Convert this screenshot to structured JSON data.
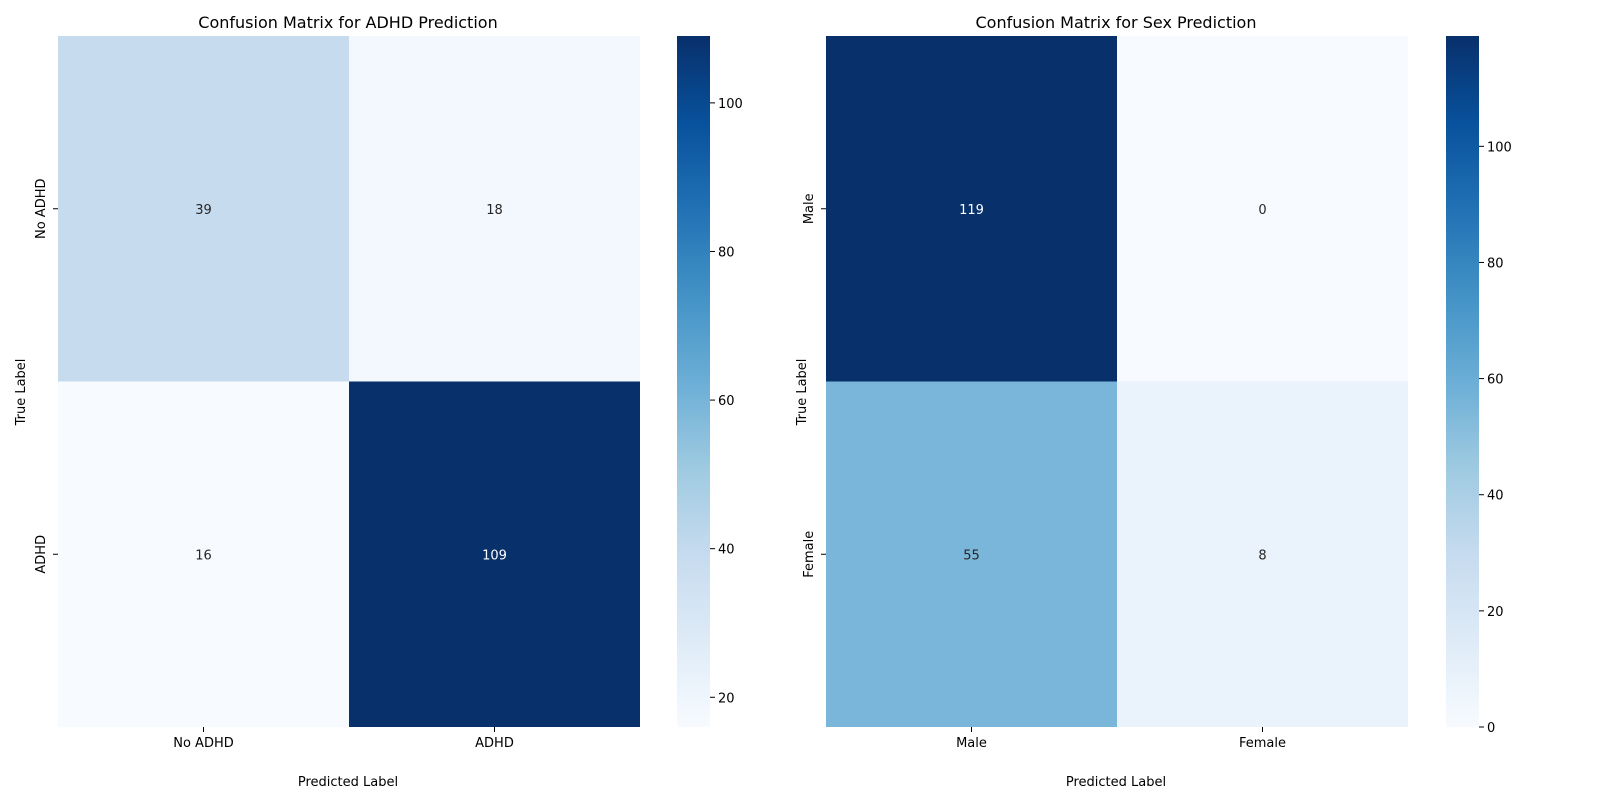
{
  "figure": {
    "background": "#ffffff"
  },
  "chart_data": [
    {
      "type": "heatmap",
      "title": "Confusion Matrix for ADHD Prediction",
      "xlabel": "Predicted Label",
      "ylabel": "True Label",
      "x_categories": [
        "No ADHD",
        "ADHD"
      ],
      "y_categories": [
        "No ADHD",
        "ADHD"
      ],
      "values": [
        [
          39,
          18
        ],
        [
          16,
          109
        ]
      ],
      "colormap": "Blues",
      "color_range": [
        16,
        109
      ],
      "colorbar_ticks": [
        20,
        40,
        60,
        80,
        100
      ]
    },
    {
      "type": "heatmap",
      "title": "Confusion Matrix for Sex Prediction",
      "xlabel": "Predicted Label",
      "ylabel": "True Label",
      "x_categories": [
        "Male",
        "Female"
      ],
      "y_categories": [
        "Male",
        "Female"
      ],
      "values": [
        [
          119,
          0
        ],
        [
          55,
          8
        ]
      ],
      "colormap": "Blues",
      "color_range": [
        0,
        119
      ],
      "colorbar_ticks": [
        0,
        20,
        40,
        60,
        80,
        100
      ]
    }
  ],
  "colormap_stops": [
    "#f7fbff",
    "#deebf7",
    "#c6dbef",
    "#9ecae1",
    "#6baed6",
    "#4292c6",
    "#2171b5",
    "#08519c",
    "#08306b"
  ]
}
